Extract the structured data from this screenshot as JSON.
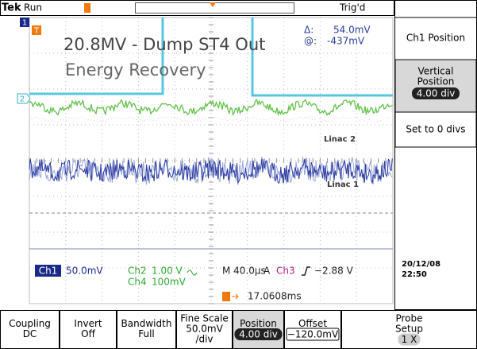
{
  "status": {
    "brand": "Tek",
    "state": "Run",
    "trigger": "Trig'd"
  },
  "overlay": {
    "title": "20.8MV - Dump ST4 Out",
    "subtitle": "Energy Recovery"
  },
  "cursor": {
    "delta_label": "Δ:",
    "delta": "54.0mV",
    "at_label": "@:",
    "at": "-437mV"
  },
  "markers": {
    "ch1": "1",
    "ch2": "2",
    "trigger": "T"
  },
  "trace_labels": [
    "Linac 2",
    "Linac 1"
  ],
  "readout": {
    "ch1": "Ch1",
    "ch1_scale": "50.0mV",
    "ch2": "Ch2",
    "ch2_scale": "1.00 V",
    "ch4": "Ch4",
    "ch4_scale": "100mV",
    "timebase": "M 40.0µs",
    "mode": "A",
    "trig_source": "Ch3",
    "trig_level": "−2.88 V",
    "trig_time": "17.0608ms"
  },
  "datetime": {
    "date": "20/12/08",
    "time": "22:50"
  },
  "side_menu": {
    "title": "Ch1 Position",
    "item1": [
      "Vertical",
      "Position"
    ],
    "item1_value": "4.00 div",
    "item2": "Set to 0 divs"
  },
  "bottom_menu": [
    {
      "lines": [
        "Coupling",
        "DC"
      ]
    },
    {
      "lines": [
        "Invert",
        "Off"
      ]
    },
    {
      "lines": [
        "Bandwidth",
        "Full"
      ]
    },
    {
      "lines": [
        "Fine Scale",
        "50.0mV",
        "/div"
      ]
    },
    {
      "lines": [
        "Position"
      ],
      "value": "4.00 div"
    },
    {
      "lines": [
        "Offset"
      ],
      "value": "−120.0mV"
    },
    {
      "lines": [
        "Probe",
        "Setup"
      ],
      "value": "1 X"
    }
  ]
}
